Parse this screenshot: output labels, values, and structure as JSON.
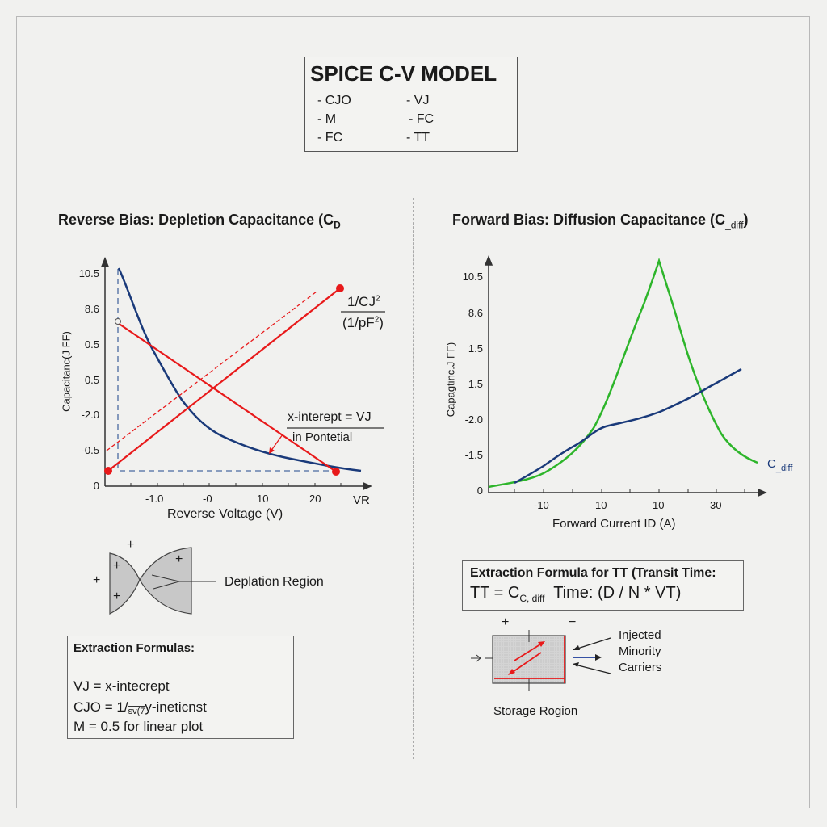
{
  "title_box": {
    "title": "SPICE C-V MODEL",
    "items": [
      "- CJO",
      "- VJ",
      "- M",
      "- FC",
      "- FC",
      "- TT"
    ]
  },
  "left": {
    "heading": "Reverse Bias: Depletion Capacitance (C",
    "heading_sub": "D",
    "chart": {
      "y_label": "Capacitanc(J FF)",
      "y_ticks": [
        "10.5",
        "8.6",
        "0.5",
        "0.5",
        "-2.0",
        "-0.5",
        "0"
      ],
      "x_ticks": [
        "-1.0",
        "-0",
        "10",
        "20"
      ],
      "x_end_label": "VR",
      "x_label": "Reverse Voltage (V)",
      "inverse_label_num": "1/CJ",
      "inverse_label_den": "(1/pF",
      "sup": "2",
      "den_close": ")",
      "intercept_label": "x-interept = VJ",
      "intercept_sub": "in Pontetial",
      "colors": {
        "curve": "#1a3a7a",
        "line": "#e8191a"
      }
    },
    "depletion_label": "Deplation Region",
    "plus": "+",
    "formulas": {
      "title": "Extraction Formulas:",
      "vj": "VJ = x-intecrept",
      "cjo_a": "CJO = 1/",
      "cjo_b": "sv(7",
      "cjo_c": "y-ineticnst",
      "m": "M = 0.5 for linear plot"
    }
  },
  "right": {
    "heading": "Forward Bias: Diffusion Capacitance (C",
    "heading_sub": "_diff",
    "heading_close": ")",
    "chart": {
      "y_label": "Capagtinc.J FF)",
      "y_ticks": [
        "10.5",
        "8.6",
        "1.5",
        "1.5",
        "-2.0",
        "-1.5",
        "0"
      ],
      "x_ticks": [
        "-10",
        "10",
        "10",
        "30"
      ],
      "x_label": "Forward Current ID (A)",
      "series_label": "C",
      "series_label_sub": "_diff",
      "colors": {
        "green": "#2db52a",
        "blue": "#1a3a7a"
      }
    },
    "formula": {
      "title": "Extraction Formula for TT (Transit Time:",
      "lhs": "TT = C",
      "lhs_sub": "C, diff",
      "rhs": "Time:  (D / N * VT)"
    },
    "storage": {
      "plus": "+",
      "minus": "−",
      "label": "Storage Rogion",
      "carriers": [
        "Injected",
        "Minority",
        "Carriers"
      ]
    }
  }
}
